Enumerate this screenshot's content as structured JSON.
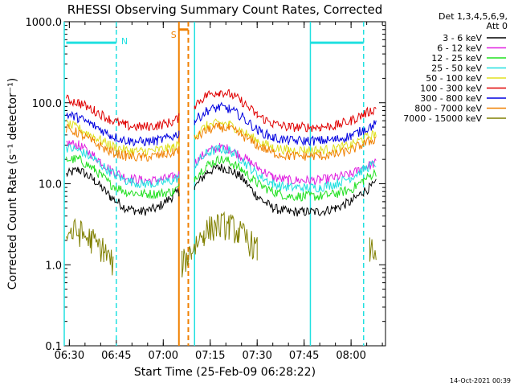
{
  "chart_data": {
    "type": "line",
    "title": "RHESSI Observing Summary Count Rates, Corrected",
    "xlabel": "Start Time (25-Feb-09 06:28:22)",
    "ylabel": "Corrected Count Rate (s⁻¹ detector⁻¹)",
    "y_scale": "log",
    "ylim": [
      0.1,
      1000.0
    ],
    "xlim": [
      "06:28:22",
      "08:11:00"
    ],
    "x_ticks": [
      "06:30",
      "06:45",
      "07:00",
      "07:15",
      "07:30",
      "07:45",
      "08:00"
    ],
    "y_ticks": [
      "0.1",
      "1.0",
      "10.0",
      "100.0",
      "1000.0"
    ],
    "legend_header": [
      "Det 1,3,4,5,6,9,",
      "Att 0"
    ],
    "legend_position": "right",
    "timestamp": "14-Oct-2021 00:39",
    "series": [
      {
        "name": "3 - 6 keV",
        "color": "#000000",
        "x": [
          "06:29",
          "06:33",
          "06:38",
          "06:43",
          "06:48",
          "06:53",
          "06:58",
          "07:03",
          "07:05",
          "07:10",
          "07:14",
          "07:18",
          "07:21",
          "07:25",
          "07:30",
          "07:35",
          "07:40",
          "07:45",
          "07:50",
          "07:55",
          "08:00",
          "08:04",
          "08:08"
        ],
        "values": [
          13,
          15,
          11,
          7,
          5,
          4.5,
          5,
          7,
          8,
          9,
          14,
          16,
          15,
          12,
          7,
          5,
          4.5,
          4.5,
          4.5,
          5,
          6,
          8,
          10
        ]
      },
      {
        "name": "6 - 12 keV",
        "color": "#e020e0",
        "x": [
          "06:29",
          "06:33",
          "06:38",
          "06:43",
          "06:48",
          "06:53",
          "06:58",
          "07:03",
          "07:05",
          "07:10",
          "07:14",
          "07:18",
          "07:21",
          "07:25",
          "07:30",
          "07:35",
          "07:40",
          "07:45",
          "07:50",
          "07:55",
          "08:00",
          "08:04",
          "08:08"
        ],
        "values": [
          32,
          30,
          22,
          15,
          12,
          11,
          11,
          12,
          13,
          18,
          25,
          28,
          27,
          22,
          16,
          12,
          11,
          11,
          11,
          12,
          13,
          16,
          18
        ]
      },
      {
        "name": "12 - 25 keV",
        "color": "#20e020",
        "x": [
          "06:29",
          "06:33",
          "06:38",
          "06:43",
          "06:48",
          "06:53",
          "06:58",
          "07:03",
          "07:05",
          "07:10",
          "07:14",
          "07:18",
          "07:21",
          "07:25",
          "07:30",
          "07:35",
          "07:40",
          "07:45",
          "07:50",
          "07:55",
          "08:00",
          "08:04",
          "08:08"
        ],
        "values": [
          20,
          20,
          15,
          10,
          8,
          7.5,
          7.5,
          8,
          9,
          12,
          17,
          20,
          19,
          15,
          10,
          8,
          7,
          7,
          7,
          7.5,
          8.5,
          11,
          14
        ]
      },
      {
        "name": "25 - 50 keV",
        "color": "#20e0e0",
        "x": [
          "06:29",
          "06:33",
          "06:38",
          "06:43",
          "06:48",
          "06:53",
          "06:58",
          "07:03",
          "07:05",
          "07:10",
          "07:14",
          "07:18",
          "07:21",
          "07:25",
          "07:30",
          "07:35",
          "07:40",
          "07:45",
          "07:50",
          "07:55",
          "08:00",
          "08:04",
          "08:08"
        ],
        "values": [
          28,
          26,
          20,
          14,
          11,
          10,
          10,
          11,
          12,
          17,
          24,
          27,
          26,
          20,
          13,
          10,
          9,
          9,
          9,
          10,
          12,
          15,
          18
        ]
      },
      {
        "name": "50 - 100 keV",
        "color": "#e0e020",
        "x": [
          "06:29",
          "06:33",
          "06:38",
          "06:43",
          "06:48",
          "06:53",
          "06:58",
          "07:03",
          "07:05",
          "07:10",
          "07:14",
          "07:18",
          "07:21",
          "07:25",
          "07:30",
          "07:35",
          "07:40",
          "07:45",
          "07:50",
          "07:55",
          "08:00",
          "08:04",
          "08:08"
        ],
        "values": [
          55,
          48,
          38,
          30,
          26,
          25,
          26,
          28,
          30,
          40,
          52,
          56,
          54,
          45,
          34,
          28,
          26,
          26,
          26,
          27,
          30,
          36,
          42
        ]
      },
      {
        "name": "100 - 300 keV",
        "color": "#e00000",
        "x": [
          "06:29",
          "06:33",
          "06:38",
          "06:43",
          "06:48",
          "06:53",
          "06:58",
          "07:03",
          "07:05",
          "07:10",
          "07:14",
          "07:18",
          "07:21",
          "07:25",
          "07:30",
          "07:35",
          "07:40",
          "07:45",
          "07:50",
          "07:55",
          "08:00",
          "08:04",
          "08:08"
        ],
        "values": [
          110,
          100,
          80,
          62,
          52,
          50,
          52,
          58,
          65,
          95,
          125,
          138,
          130,
          105,
          70,
          55,
          50,
          50,
          50,
          52,
          60,
          72,
          85
        ]
      },
      {
        "name": "300 - 800 keV",
        "color": "#0000e0",
        "x": [
          "06:29",
          "06:33",
          "06:38",
          "06:43",
          "06:48",
          "06:53",
          "06:58",
          "07:03",
          "07:05",
          "07:10",
          "07:14",
          "07:18",
          "07:21",
          "07:25",
          "07:30",
          "07:35",
          "07:40",
          "07:45",
          "07:50",
          "07:55",
          "08:00",
          "08:04",
          "08:08"
        ],
        "values": [
          72,
          65,
          52,
          40,
          34,
          33,
          34,
          38,
          42,
          60,
          80,
          88,
          84,
          68,
          46,
          37,
          34,
          34,
          34,
          35,
          39,
          46,
          55
        ]
      },
      {
        "name": "800 - 7000 keV",
        "color": "#f08000",
        "x": [
          "06:29",
          "06:33",
          "06:38",
          "06:43",
          "06:48",
          "06:53",
          "06:58",
          "07:03",
          "07:05",
          "07:10",
          "07:14",
          "07:18",
          "07:21",
          "07:25",
          "07:30",
          "07:35",
          "07:40",
          "07:45",
          "07:50",
          "07:55",
          "08:00",
          "08:04",
          "08:08"
        ],
        "values": [
          48,
          42,
          32,
          25,
          22,
          21,
          22,
          24,
          27,
          36,
          46,
          50,
          48,
          40,
          30,
          24,
          22,
          22,
          22,
          23,
          26,
          31,
          36
        ]
      },
      {
        "name": "7000 - 15000 keV",
        "color": "#808000",
        "x": [
          "06:29",
          "06:33",
          "06:37",
          "06:41",
          "06:44",
          "07:06",
          "07:09",
          "07:13",
          "07:17",
          "07:21",
          "07:24",
          "07:27",
          "07:30",
          "08:06",
          "08:08"
        ],
        "values": [
          2.5,
          2.5,
          2,
          1.5,
          1,
          1,
          1.5,
          2.5,
          3,
          3,
          2.5,
          2,
          1.5,
          1.5,
          1.5
        ]
      }
    ],
    "annotations": [
      {
        "label": "N",
        "time": "06:45",
        "color": "#20e0e0"
      },
      {
        "label": "S",
        "time": "07:05",
        "color": "#f08000"
      }
    ],
    "vlines": [
      {
        "time": "06:28:22",
        "color": "#20e0e0",
        "style": "solid"
      },
      {
        "time": "06:45",
        "color": "#20e0e0",
        "style": "dashed"
      },
      {
        "time": "07:05",
        "color": "#f08000",
        "style": "solid"
      },
      {
        "time": "07:08",
        "color": "#f08000",
        "style": "dashed"
      },
      {
        "time": "07:10",
        "color": "#20e0e0",
        "style": "solid"
      },
      {
        "time": "07:47",
        "color": "#20e0e0",
        "style": "solid"
      },
      {
        "time": "08:04",
        "color": "#20e0e0",
        "style": "dashed"
      }
    ],
    "hbars": [
      {
        "from": "06:29",
        "to": "06:45",
        "value": 550,
        "color": "#20e0e0"
      },
      {
        "from": "07:05",
        "to": "07:08",
        "value": 800,
        "color": "#f08000"
      },
      {
        "from": "07:47",
        "to": "08:04",
        "value": 550,
        "color": "#20e0e0"
      }
    ]
  }
}
